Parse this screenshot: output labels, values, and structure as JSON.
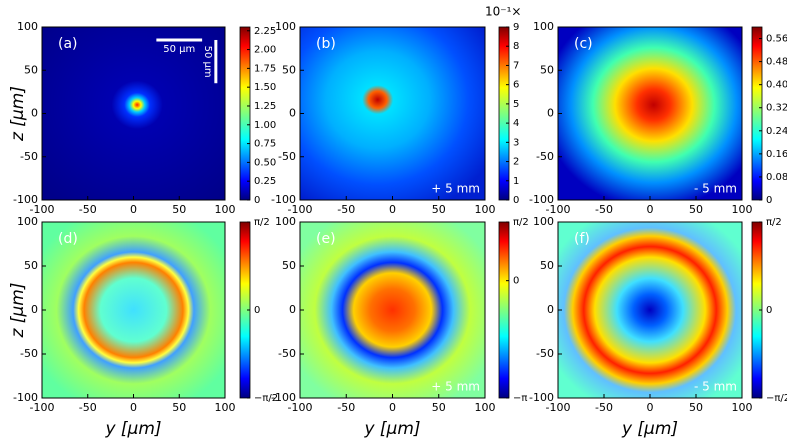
{
  "chart_data": [
    {
      "type": "heatmap",
      "panel_label": "(a)",
      "ylabel": "z [μm]",
      "xlim": [
        -100,
        100
      ],
      "ylim": [
        -100,
        100
      ],
      "xticks": [
        -100,
        -50,
        0,
        50,
        100
      ],
      "yticks": [
        -100,
        -50,
        0,
        50,
        100
      ],
      "scale_bar_labels": [
        "50 μm",
        "50 μm"
      ],
      "colorbar": {
        "ylim": [
          0,
          2.3
        ],
        "yticks": [
          0,
          {
            "value": 0.25,
            "label": "0.25"
          },
          {
            "value": 0.5,
            "label": "0.50"
          },
          {
            "value": 0.75,
            "label": "0.75"
          },
          {
            "value": 1,
            "label": "1.00"
          },
          {
            "value": 1.25,
            "label": "1.25"
          },
          {
            "value": 1.5,
            "label": "1.50"
          },
          {
            "value": 1.75,
            "label": "1.75"
          },
          {
            "value": 2,
            "label": "2.00"
          },
          {
            "value": 2.25,
            "label": "2.25"
          }
        ]
      }
    },
    {
      "type": "heatmap",
      "panel_label": "(b)",
      "annotation": "+ 5 mm",
      "xlim": [
        -100,
        100
      ],
      "ylim": [
        -100,
        100
      ],
      "xticks": [
        -100,
        -50,
        0,
        50,
        100
      ],
      "yticks": [
        -100,
        -50,
        0,
        50,
        100
      ],
      "colorbar": {
        "label": "10⁻¹×",
        "ylim": [
          0,
          9
        ],
        "yticks": [
          0,
          1,
          2,
          3,
          4,
          5,
          6,
          7,
          8,
          9
        ]
      }
    },
    {
      "type": "heatmap",
      "panel_label": "(c)",
      "annotation": "- 5 mm",
      "xlim": [
        -100,
        100
      ],
      "ylim": [
        -100,
        100
      ],
      "xticks": [
        -100,
        -50,
        0,
        50,
        100
      ],
      "yticks": [
        -100,
        -50,
        0,
        50,
        100
      ],
      "colorbar": {
        "ylim": [
          0,
          0.6
        ],
        "yticks": [
          0,
          {
            "value": 0.08,
            "label": "0.08"
          },
          {
            "value": 0.16,
            "label": "0.16"
          },
          {
            "value": 0.24,
            "label": "0.24"
          },
          {
            "value": 0.32,
            "label": "0.32"
          },
          {
            "value": 0.4,
            "label": "0.40"
          },
          {
            "value": 0.48,
            "label": "0.48"
          },
          {
            "value": 0.56,
            "label": "0.56"
          }
        ]
      }
    },
    {
      "type": "heatmap",
      "panel_label": "(d)",
      "ylabel": "z [μm]",
      "xlabel": "y [μm]",
      "xlim": [
        -100,
        100
      ],
      "ylim": [
        -100,
        100
      ],
      "xticks": [
        -100,
        -50,
        0,
        50,
        100
      ],
      "yticks": [
        -100,
        -50,
        0,
        50,
        100
      ],
      "colorbar": {
        "ylim": [
          -1.5708,
          1.5708
        ],
        "yticks": [
          {
            "value": -1.5708,
            "label": "−π/2"
          },
          0,
          {
            "value": 1.5708,
            "label": "π/2"
          }
        ]
      }
    },
    {
      "type": "heatmap",
      "panel_label": "(e)",
      "annotation": "+ 5 mm",
      "xlabel": "y [μm]",
      "xlim": [
        -100,
        100
      ],
      "ylim": [
        -100,
        100
      ],
      "xticks": [
        -100,
        -50,
        0,
        50,
        100
      ],
      "yticks": [
        -100,
        -50,
        0,
        50,
        100
      ],
      "colorbar": {
        "ylim": [
          -3.1416,
          1.5708
        ],
        "yticks": [
          {
            "value": -3.1416,
            "label": "−π"
          },
          0,
          {
            "value": 1.5708,
            "label": "π/2"
          }
        ]
      }
    },
    {
      "type": "heatmap",
      "panel_label": "(f)",
      "annotation": "- 5 mm",
      "xlabel": "y [μm]",
      "xlim": [
        -100,
        100
      ],
      "ylim": [
        -100,
        100
      ],
      "xticks": [
        -100,
        -50,
        0,
        50,
        100
      ],
      "yticks": [
        -100,
        -50,
        0,
        50,
        100
      ],
      "colorbar": {
        "ylim": [
          -1.5708,
          1.5708
        ],
        "yticks": [
          {
            "value": -1.5708,
            "label": "−π/2"
          },
          0,
          {
            "value": 1.5708,
            "label": "π/2"
          }
        ]
      }
    }
  ]
}
